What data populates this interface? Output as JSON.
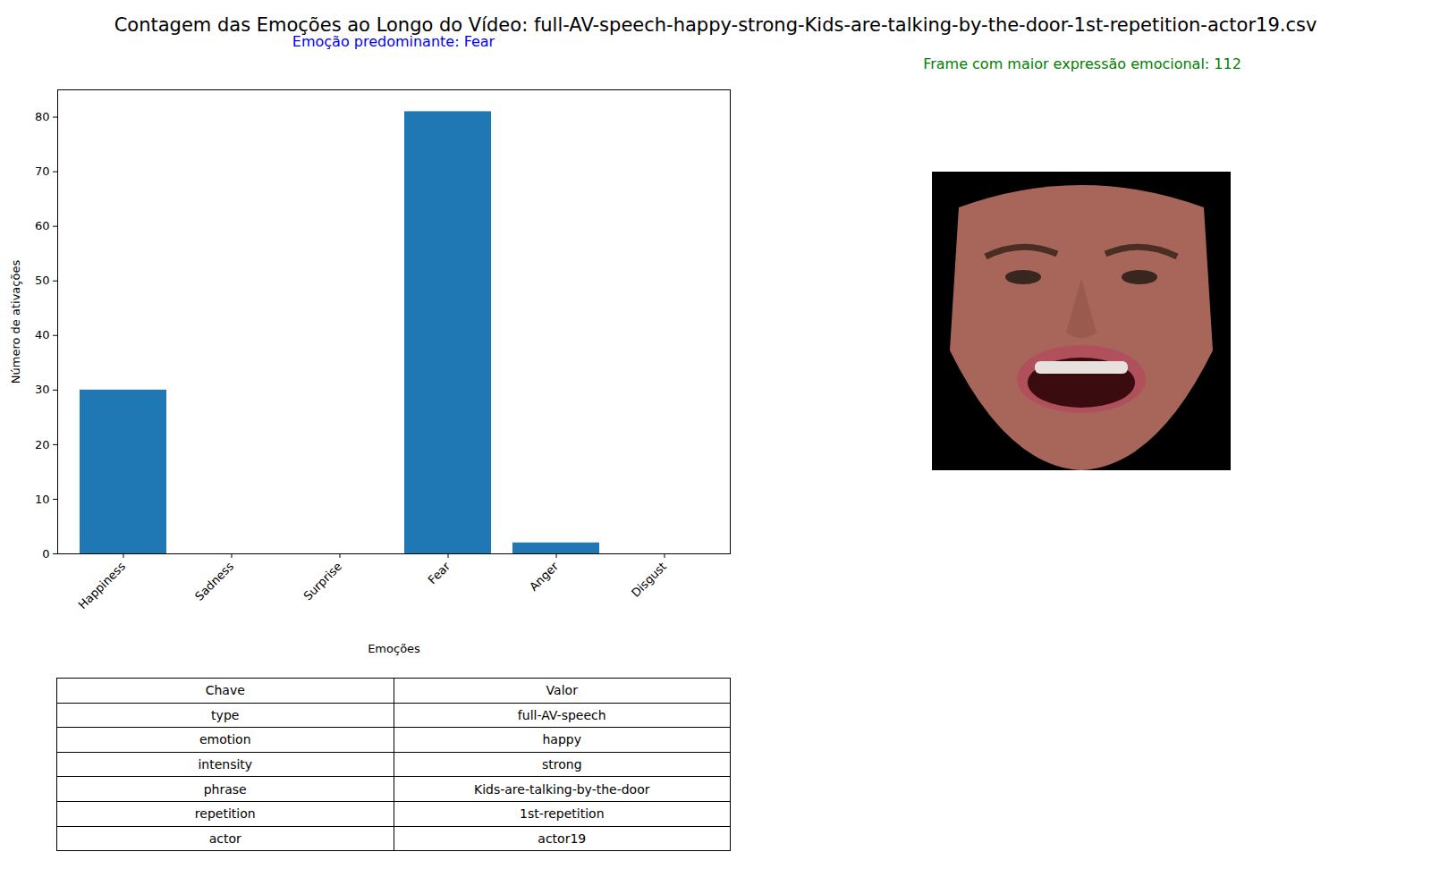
{
  "chart_data": {
    "type": "bar",
    "title": "Contagem das Emoções ao Longo do Vídeo: full-AV-speech-happy-strong-Kids-are-talking-by-the-door-1st-repetition-actor19.csv",
    "annotations": [
      "Emoção predominante: Fear",
      "Frame com maior expressão emocional: 112"
    ],
    "annotation_colors": [
      "blue",
      "green"
    ],
    "x_label": "Emoções",
    "y_label": "Número de ativações",
    "categories": [
      "Happiness",
      "Sadness",
      "Surprise",
      "Fear",
      "Anger",
      "Disgust"
    ],
    "values": [
      30,
      0,
      0,
      81,
      2,
      0
    ],
    "color": "#1f77b4",
    "ylim": [
      0,
      85
    ],
    "yticks": [
      0,
      10,
      20,
      30,
      40,
      50,
      60,
      70,
      80
    ],
    "grid": false
  },
  "table": {
    "header": [
      "Chave",
      "Valor"
    ],
    "rows": [
      [
        "type",
        "full-AV-speech"
      ],
      [
        "emotion",
        "happy"
      ],
      [
        "intensity",
        "strong"
      ],
      [
        "phrase",
        "Kids-are-talking-by-the-door"
      ],
      [
        "repetition",
        "1st-repetition"
      ],
      [
        "actor",
        "actor19"
      ]
    ]
  }
}
